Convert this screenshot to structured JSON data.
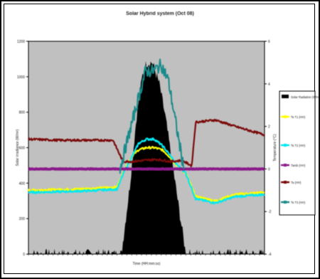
{
  "chart_data": {
    "type": "line",
    "title": "Solar Hybrid system (Oct 08)",
    "xlabel": "Time (HH:mm:ss)",
    "ylabel": "Solar irradiance (W/m²)",
    "y2label": "Temperature (°C)",
    "ylim": [
      0,
      1200
    ],
    "y2lim": [
      -4,
      6
    ],
    "yticks": [
      "1200",
      "1000",
      "800",
      "600",
      "400",
      "200",
      "0"
    ],
    "y2ticks": [
      "6",
      "4",
      "2",
      "0",
      "-2",
      "-4"
    ],
    "xlim": [
      0,
      24
    ],
    "grid": false,
    "legend_placement": "right",
    "series": [
      {
        "name": "Solar Radiation (W/m2)",
        "axis": "left",
        "kind": "area",
        "color": "#000000",
        "x": [
          0,
          9.45,
          10.3,
          11.0,
          11.6,
          12.0,
          12.6,
          13.3,
          13.9,
          14.6,
          15.4,
          16.0,
          24
        ],
        "y": [
          0,
          0,
          380,
          780,
          1010,
          1080,
          1080,
          960,
          780,
          520,
          220,
          0,
          0
        ]
      },
      {
        "name": "Ts T1 (HH)",
        "axis": "right",
        "color": "#ffff00",
        "x": [
          0,
          3,
          6,
          9,
          9.8,
          10.5,
          11.2,
          12,
          12.8,
          13.6,
          14.3,
          15,
          16,
          17,
          19,
          21,
          24
        ],
        "y": [
          -1,
          -0.97,
          -0.93,
          -0.85,
          0,
          0.6,
          0.9,
          1.0,
          1.0,
          0.9,
          0.6,
          0.2,
          -0.2,
          -1.3,
          -1.5,
          -1.2,
          -1.1
        ]
      },
      {
        "name": "Ts T2 (HH)",
        "axis": "right",
        "color": "#00e8f0",
        "x": [
          0,
          3,
          6,
          9,
          9.8,
          10.5,
          11.2,
          12,
          12.8,
          13.6,
          14.3,
          15,
          16,
          17,
          19,
          21,
          24
        ],
        "y": [
          -1.1,
          -1.07,
          -1.03,
          -0.95,
          -0.05,
          0.55,
          1.2,
          1.4,
          1.4,
          1.1,
          0.7,
          0.25,
          -0.2,
          -1.4,
          -1.6,
          -1.3,
          -1.2
        ]
      },
      {
        "name": "Tamb (HH)",
        "axis": "right",
        "color": "#8b1a8b",
        "x": [
          0,
          24
        ],
        "y": [
          0,
          0
        ]
      },
      {
        "name": "Ta (HH)",
        "axis": "right",
        "color": "#7b0a0a",
        "x": [
          0,
          3,
          6,
          8.6,
          9.6,
          10.5,
          13,
          14.5,
          15.6,
          16.6,
          17,
          19,
          21,
          24
        ],
        "y": [
          1.4,
          1.35,
          1.35,
          1.35,
          0.35,
          0.35,
          0.45,
          0.35,
          0.4,
          0.15,
          2.2,
          2.3,
          2.0,
          1.6
        ]
      },
      {
        "name": "Ts T3 (HH)",
        "axis": "right",
        "color": "#1a8a8a",
        "x": [
          9.3,
          11.9,
          12.7,
          13.5,
          14.2,
          15.8
        ],
        "y": [
          0,
          4.6,
          4.6,
          4.9,
          4.2,
          0
        ]
      }
    ]
  },
  "legend": [
    {
      "label": "Solar Radiation (W/m2)",
      "color": "#000000",
      "marker": "bar"
    },
    {
      "label": "Ts T1 (HH)",
      "color": "#ffff00",
      "marker": "line"
    },
    {
      "label": "Ts T2 (HH)",
      "color": "#00e8f0",
      "marker": "line"
    },
    {
      "label": "Tamb (HH)",
      "color": "#8b1a8b",
      "marker": "line"
    },
    {
      "label": "Ta (HH)",
      "color": "#7b0a0a",
      "marker": "line"
    },
    {
      "label": "Ts T3 (HH)",
      "color": "#1a8a8a",
      "marker": "line"
    }
  ],
  "colors": {
    "plot_background": "#c0c0c0",
    "frame": "#000000"
  }
}
